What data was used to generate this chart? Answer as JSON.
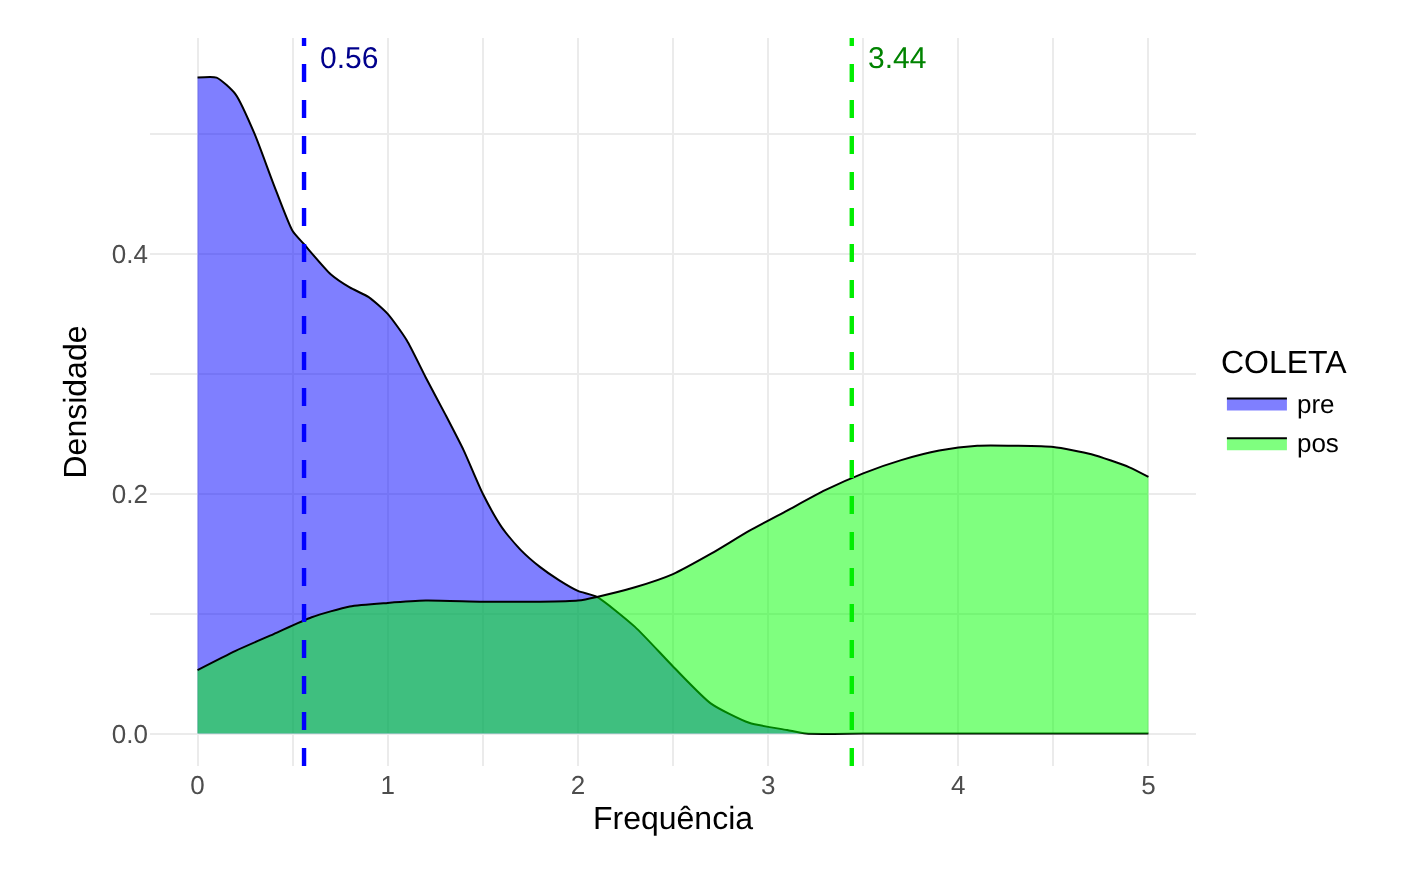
{
  "chart_data": {
    "type": "area",
    "xlabel": "Frequência",
    "ylabel": "Densidade",
    "legend_title": "COLETA",
    "xlim": [
      -0.25,
      5.25
    ],
    "xticks": [
      0,
      {
        "value": 0.5,
        "label": null
      },
      1,
      {
        "value": 1.5,
        "label": null
      },
      2,
      {
        "value": 2.5,
        "label": null
      },
      3,
      {
        "value": 3.5,
        "label": null
      },
      4,
      {
        "value": 4.5,
        "label": null
      },
      5
    ],
    "ylim": [
      -0.027,
      0.58
    ],
    "yticks": [
      {
        "value": 0,
        "label": "0.0"
      },
      {
        "value": 0.1,
        "label": null
      },
      0.2,
      {
        "value": 0.3,
        "label": null
      },
      0.4,
      {
        "value": 0.5,
        "label": null
      }
    ],
    "grid": true,
    "legend": "right",
    "line_style": "solid",
    "marker": "none",
    "series": [
      {
        "name": "pre",
        "color": "#7f7fff",
        "x": [
          0,
          0.1,
          0.2,
          0.3,
          0.4,
          0.5,
          0.56,
          0.7,
          0.8,
          0.9,
          1.0,
          1.1,
          1.2,
          1.3,
          1.4,
          1.5,
          1.6,
          1.7,
          1.8,
          1.9,
          2.0,
          2.1,
          2.3,
          2.5,
          2.7,
          2.9,
          3.1,
          3.2,
          3.5,
          4,
          4.5,
          5
        ],
        "values": [
          0.547,
          0.547,
          0.533,
          0.5,
          0.458,
          0.419,
          0.408,
          0.383,
          0.372,
          0.364,
          0.35,
          0.328,
          0.297,
          0.267,
          0.236,
          0.2,
          0.172,
          0.153,
          0.139,
          0.128,
          0.119,
          0.114,
          0.089,
          0.056,
          0.025,
          0.009,
          0.003,
          0,
          0,
          0,
          0,
          0
        ]
      },
      {
        "name": "pos",
        "color": "#7fff7f",
        "x": [
          0,
          0.2,
          0.4,
          0.6,
          0.8,
          1.0,
          1.2,
          1.5,
          1.8,
          2.0,
          2.1,
          2.3,
          2.5,
          2.7,
          2.9,
          3.1,
          3.3,
          3.5,
          3.7,
          3.9,
          4.1,
          4.3,
          4.5,
          4.7,
          4.9,
          5
        ],
        "values": [
          0.053,
          0.069,
          0.083,
          0.097,
          0.106,
          0.109,
          0.111,
          0.11,
          0.11,
          0.111,
          0.114,
          0.122,
          0.133,
          0.15,
          0.169,
          0.186,
          0.203,
          0.217,
          0.228,
          0.236,
          0.24,
          0.24,
          0.239,
          0.233,
          0.222,
          0.214
        ]
      }
    ],
    "ref_lines": [
      {
        "axis": "x",
        "value": 0.56,
        "label": "0.56",
        "color": "#0000ff",
        "line_style": "dashed"
      },
      {
        "axis": "x",
        "value": 3.44,
        "label": "3.44",
        "color": "#00ee00",
        "line_style": "dashed"
      }
    ]
  }
}
